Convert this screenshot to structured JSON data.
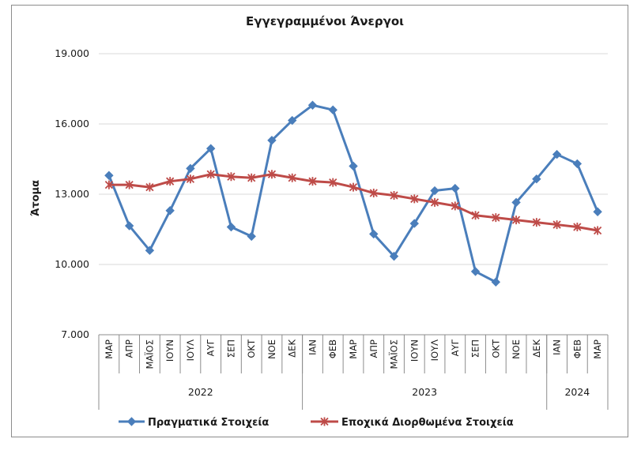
{
  "chart_data": {
    "type": "line",
    "title": "Εγγεγραμμένοι Άνεργοι",
    "xlabel": "",
    "ylabel": "Άτομα",
    "ylim": [
      7000,
      19000
    ],
    "yticks": [
      "7.000",
      "10.000",
      "13.000",
      "16.000",
      "19.000"
    ],
    "ytick_values": [
      7000,
      10000,
      13000,
      16000,
      19000
    ],
    "grid": "horizontal",
    "legend_position": "bottom",
    "categories": [
      "ΜΑΡ",
      "ΑΠΡ",
      "ΜΑΪΟΣ",
      "ΙΟΥΝ",
      "ΙΟΥΛ",
      "ΑΥΓ",
      "ΣΕΠ",
      "ΟΚΤ",
      "ΝΟΕ",
      "ΔΕΚ",
      "ΙΑΝ",
      "ΦΕΒ",
      "ΜΑΡ",
      "ΑΠΡ",
      "ΜΑΪΟΣ",
      "ΙΟΥΝ",
      "ΙΟΥΛ",
      "ΑΥΓ",
      "ΣΕΠ",
      "ΟΚΤ",
      "ΝΟΕ",
      "ΔΕΚ",
      "ΙΑΝ",
      "ΦΕΒ",
      "ΜΑΡ"
    ],
    "years": [
      {
        "label": "2022",
        "count": 10
      },
      {
        "label": "2023",
        "count": 12
      },
      {
        "label": "2024",
        "count": 3
      }
    ],
    "series": [
      {
        "name": "Πραγματικά Στοιχεία",
        "color": "#4a7ebb",
        "marker": "diamond",
        "values": [
          13800,
          11650,
          10600,
          12300,
          14100,
          14950,
          11600,
          11200,
          15300,
          16150,
          16800,
          16600,
          14200,
          11300,
          10350,
          11750,
          13150,
          13250,
          9700,
          9250,
          12650,
          13650,
          14700,
          14300,
          12250
        ]
      },
      {
        "name": "Εποχικά Διορθωμένα Στοιχεία",
        "color": "#be4b48",
        "marker": "star",
        "values": [
          13400,
          13400,
          13300,
          13550,
          13650,
          13850,
          13750,
          13700,
          13850,
          13700,
          13550,
          13500,
          13300,
          13050,
          12950,
          12800,
          12650,
          12500,
          12100,
          12000,
          11900,
          11800,
          11700,
          11600,
          11450
        ]
      }
    ]
  }
}
